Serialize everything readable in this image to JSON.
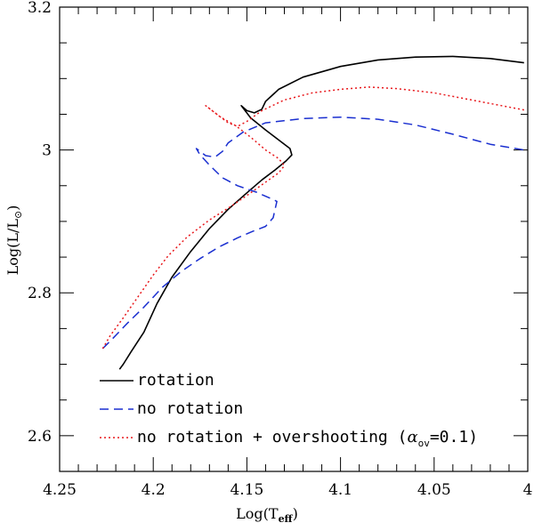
{
  "chart_data": {
    "type": "line",
    "xlabel": "Log(T",
    "xlabel_sub": "eff",
    "xlabel_end": ")",
    "ylabel": "Log(L/L",
    "ylabel_sub": "⊙",
    "ylabel_end": ")",
    "xlim": [
      4.25,
      4.0
    ],
    "ylim": [
      2.55,
      3.2
    ],
    "x_ticks": [
      {
        "value": 4.25,
        "label": "4.25"
      },
      {
        "value": 4.2,
        "label": "4.2"
      },
      {
        "value": 4.15,
        "label": "4.15"
      },
      {
        "value": 4.1,
        "label": "4.1"
      },
      {
        "value": 4.05,
        "label": "4.05"
      },
      {
        "value": 4.0,
        "label": "4"
      }
    ],
    "y_ticks": [
      {
        "value": 2.6,
        "label": "2.6"
      },
      {
        "value": 2.8,
        "label": "2.8"
      },
      {
        "value": 3.0,
        "label": "3"
      },
      {
        "value": 3.2,
        "label": "3.2"
      }
    ],
    "legend": {
      "position": "bottom-left",
      "entries": [
        {
          "label": "rotation",
          "series": "rotation"
        },
        {
          "label": "no rotation",
          "series": "no_rotation"
        },
        {
          "label_parts": [
            "no rotation + overshooting (",
            "α",
            "ov",
            "=0.1)"
          ],
          "series": "overshooting"
        }
      ]
    },
    "series": [
      {
        "id": "rotation",
        "name": "rotation",
        "color": "#000000",
        "dash": "",
        "points": [
          [
            4.218,
            2.693
          ],
          [
            4.216,
            2.7
          ],
          [
            4.212,
            2.717
          ],
          [
            4.205,
            2.745
          ],
          [
            4.198,
            2.785
          ],
          [
            4.19,
            2.822
          ],
          [
            4.18,
            2.858
          ],
          [
            4.17,
            2.89
          ],
          [
            4.16,
            2.917
          ],
          [
            4.15,
            2.94
          ],
          [
            4.142,
            2.958
          ],
          [
            4.135,
            2.972
          ],
          [
            4.129,
            2.985
          ],
          [
            4.126,
            2.993
          ],
          [
            4.127,
            3.002
          ],
          [
            4.132,
            3.012
          ],
          [
            4.14,
            3.028
          ],
          [
            4.148,
            3.045
          ],
          [
            4.153,
            3.062
          ],
          [
            4.15,
            3.055
          ],
          [
            4.146,
            3.052
          ],
          [
            4.142,
            3.057
          ],
          [
            4.14,
            3.068
          ],
          [
            4.133,
            3.085
          ],
          [
            4.12,
            3.102
          ],
          [
            4.1,
            3.117
          ],
          [
            4.08,
            3.126
          ],
          [
            4.06,
            3.13
          ],
          [
            4.04,
            3.131
          ],
          [
            4.02,
            3.128
          ],
          [
            4.002,
            3.122
          ]
        ]
      },
      {
        "id": "no_rotation",
        "name": "no rotation",
        "color": "#1a2fd0",
        "dash": "10 6",
        "points": [
          [
            4.227,
            2.722
          ],
          [
            4.222,
            2.735
          ],
          [
            4.214,
            2.757
          ],
          [
            4.205,
            2.78
          ],
          [
            4.195,
            2.808
          ],
          [
            4.185,
            2.83
          ],
          [
            4.175,
            2.848
          ],
          [
            4.165,
            2.864
          ],
          [
            4.155,
            2.877
          ],
          [
            4.147,
            2.886
          ],
          [
            4.14,
            2.893
          ],
          [
            4.136,
            2.905
          ],
          [
            4.134,
            2.928
          ],
          [
            4.138,
            2.933
          ],
          [
            4.145,
            2.941
          ],
          [
            4.155,
            2.95
          ],
          [
            4.163,
            2.961
          ],
          [
            4.17,
            2.979
          ],
          [
            4.175,
            2.993
          ],
          [
            4.177,
            3.002
          ],
          [
            4.172,
            2.992
          ],
          [
            4.167,
            2.99
          ],
          [
            4.163,
            2.998
          ],
          [
            4.16,
            3.01
          ],
          [
            4.152,
            3.025
          ],
          [
            4.14,
            3.038
          ],
          [
            4.12,
            3.044
          ],
          [
            4.1,
            3.046
          ],
          [
            4.08,
            3.043
          ],
          [
            4.06,
            3.035
          ],
          [
            4.04,
            3.022
          ],
          [
            4.02,
            3.008
          ],
          [
            4.002,
            3.0
          ]
        ]
      },
      {
        "id": "overshooting",
        "name": "no rotation + overshooting (α_ov=0.1)",
        "color": "#e8181c",
        "dash": "2 3",
        "points": [
          [
            4.227,
            2.722
          ],
          [
            4.223,
            2.74
          ],
          [
            4.216,
            2.765
          ],
          [
            4.208,
            2.795
          ],
          [
            4.2,
            2.825
          ],
          [
            4.192,
            2.852
          ],
          [
            4.182,
            2.878
          ],
          [
            4.17,
            2.902
          ],
          [
            4.158,
            2.922
          ],
          [
            4.148,
            2.94
          ],
          [
            4.14,
            2.955
          ],
          [
            4.133,
            2.968
          ],
          [
            4.13,
            2.978
          ],
          [
            4.133,
            2.988
          ],
          [
            4.14,
            3.0
          ],
          [
            4.148,
            3.018
          ],
          [
            4.156,
            3.034
          ],
          [
            4.164,
            3.046
          ],
          [
            4.17,
            3.058
          ],
          [
            4.172,
            3.062
          ],
          [
            4.165,
            3.048
          ],
          [
            4.16,
            3.038
          ],
          [
            4.155,
            3.033
          ],
          [
            4.15,
            3.04
          ],
          [
            4.142,
            3.055
          ],
          [
            4.13,
            3.07
          ],
          [
            4.115,
            3.08
          ],
          [
            4.1,
            3.085
          ],
          [
            4.085,
            3.088
          ],
          [
            4.07,
            3.086
          ],
          [
            4.05,
            3.08
          ],
          [
            4.03,
            3.07
          ],
          [
            4.01,
            3.06
          ],
          [
            4.002,
            3.056
          ]
        ]
      }
    ]
  }
}
